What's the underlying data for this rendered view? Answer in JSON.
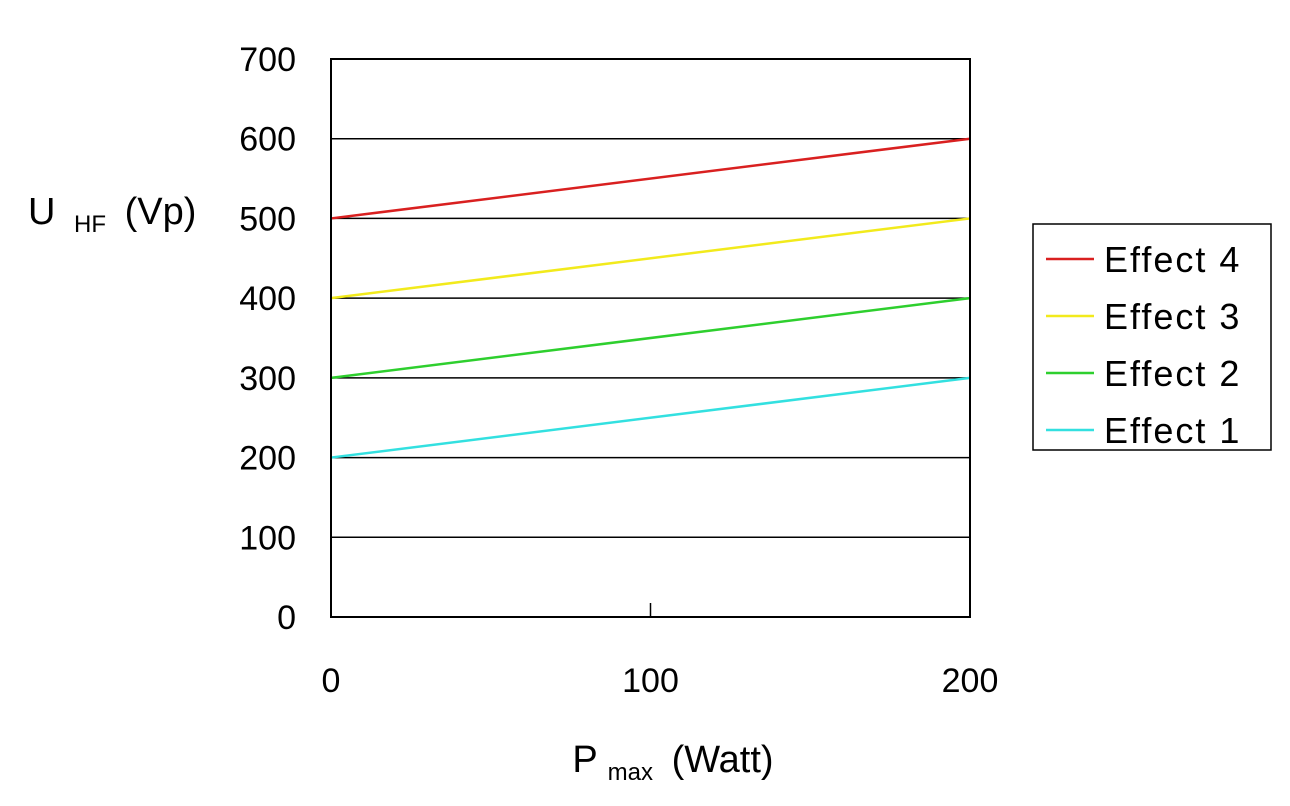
{
  "chart_data": {
    "type": "line",
    "title": "",
    "ylabel": {
      "main": "U",
      "sub": "HF",
      "unit": "(Vp)"
    },
    "xlabel": {
      "main": "P",
      "sub": "max",
      "unit": "(Watt)"
    },
    "x": [
      0,
      200
    ],
    "xlim": [
      0,
      200
    ],
    "ylim": [
      0,
      700
    ],
    "xticks": [
      0,
      100,
      200
    ],
    "yticks": [
      0,
      100,
      200,
      300,
      400,
      500,
      600,
      700
    ],
    "grid": "horizontal",
    "legend": "right",
    "series": [
      {
        "name": "Effect 4",
        "values": [
          500,
          600
        ],
        "color": "#d92020"
      },
      {
        "name": "Effect 3",
        "values": [
          400,
          500
        ],
        "color": "#f2ea1c"
      },
      {
        "name": "Effect 2",
        "values": [
          300,
          400
        ],
        "color": "#2ecf2e"
      },
      {
        "name": "Effect 1",
        "values": [
          200,
          300
        ],
        "color": "#33e0e0"
      }
    ]
  }
}
